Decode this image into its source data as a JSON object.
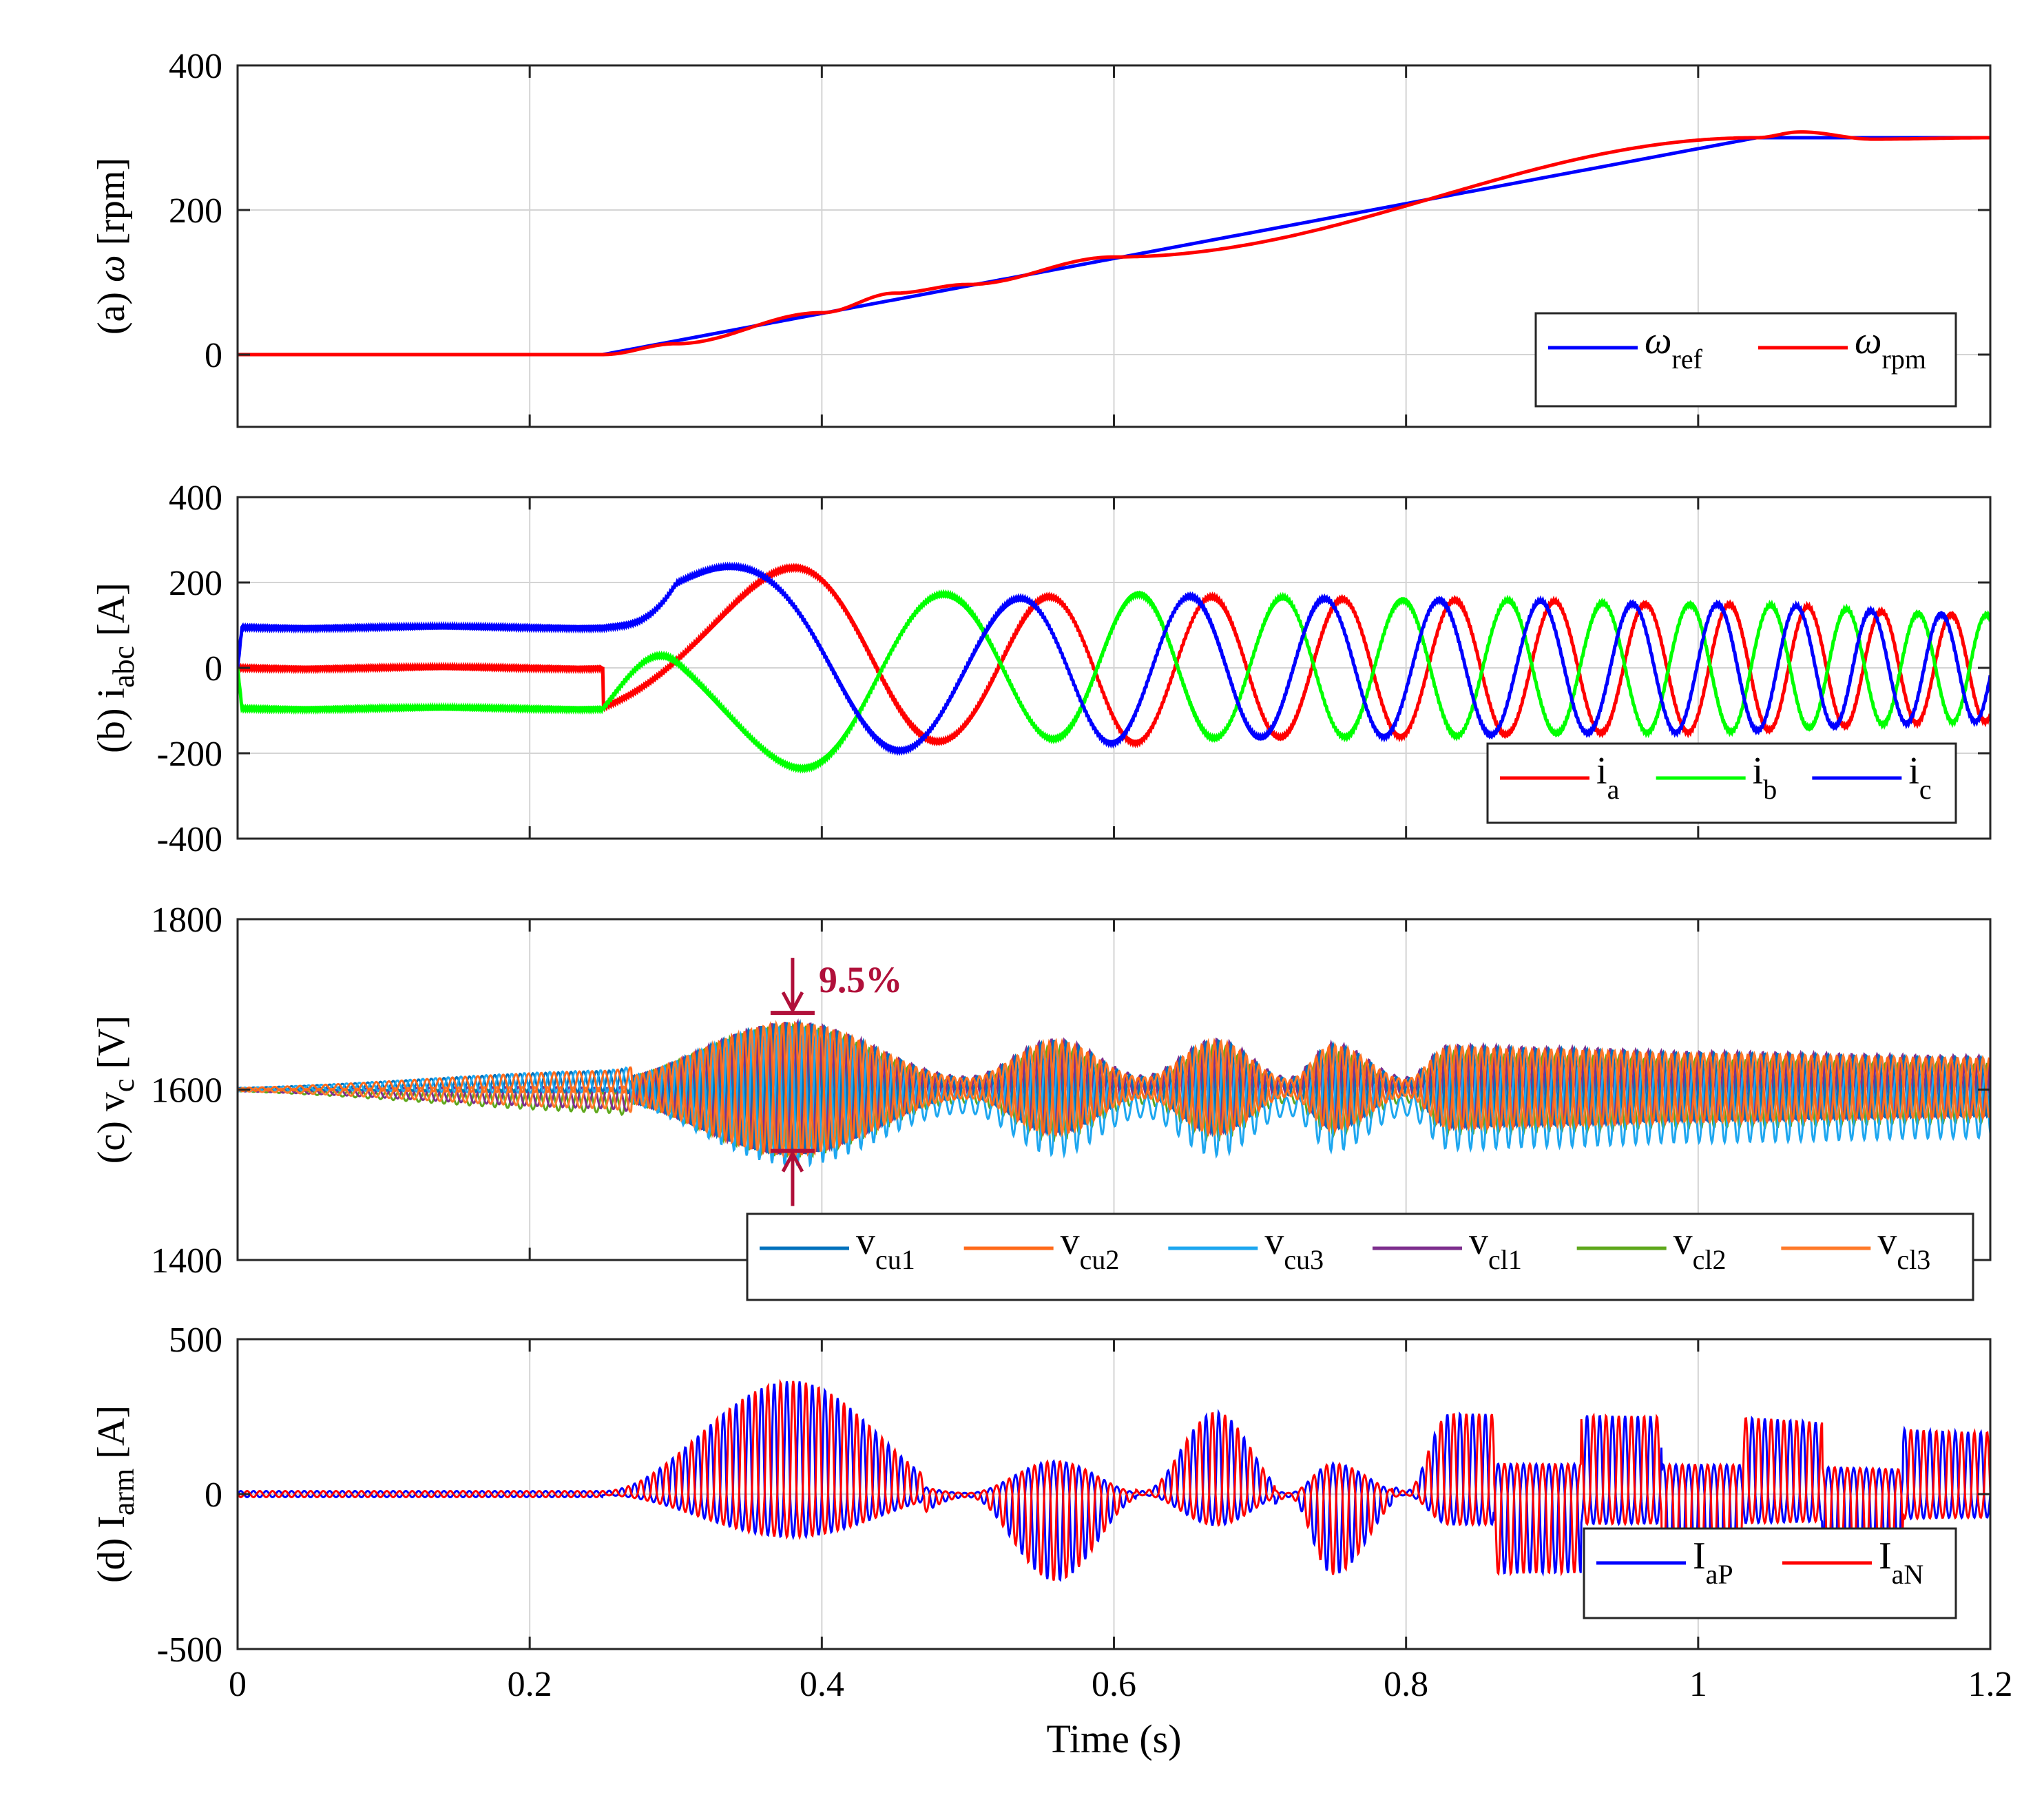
{
  "chart_data": [
    {
      "type": "line",
      "ylabel": "(a) ω [rpm]",
      "ylabel_parts": {
        "prefix": "(a) ",
        "symbol": "ω",
        "sub": "",
        "suffix": " [rpm]"
      },
      "xlim": [
        0,
        1.2
      ],
      "ylim": [
        -100,
        400
      ],
      "yticks": [
        {
          "v": 0,
          "label": "0"
        },
        {
          "v": 200,
          "label": "200"
        },
        {
          "v": 400,
          "label": "400"
        }
      ],
      "grid": true,
      "legend_placement": "bottom-right",
      "series": [
        {
          "name": "ω",
          "sub": "ref",
          "color": "#0000ff",
          "shape": "ramp",
          "x": [
            0,
            0.25,
            1.04,
            1.2
          ],
          "y": [
            0,
            0,
            300,
            300
          ]
        },
        {
          "name": "ω",
          "sub": "rpm",
          "color": "#ff0000",
          "shape": "tracking",
          "x": [
            0,
            0.25,
            0.3,
            0.4,
            0.45,
            0.5,
            0.6,
            1.04,
            1.07,
            1.12,
            1.2
          ],
          "y": [
            0,
            0,
            15,
            58,
            85,
            97,
            135,
            300,
            308,
            298,
            300
          ]
        }
      ]
    },
    {
      "type": "line",
      "ylabel": "(b) i_abc [A]",
      "ylabel_parts": {
        "prefix": "(b) ",
        "symbol": "i",
        "sub": "abc",
        "suffix": " [A]"
      },
      "xlim": [
        0,
        1.2
      ],
      "ylim": [
        -400,
        400
      ],
      "yticks": [
        {
          "v": -400,
          "label": "-400"
        },
        {
          "v": -200,
          "label": "-200"
        },
        {
          "v": 0,
          "label": "0"
        },
        {
          "v": 200,
          "label": "200"
        },
        {
          "v": 400,
          "label": "400"
        }
      ],
      "grid": true,
      "legend_placement": "bottom-right",
      "phase_current_peaks_A": {
        "x": [
          0.38,
          0.52,
          0.6,
          0.68,
          0.8,
          1.0,
          1.2
        ],
        "amplitude": [
          235,
          160,
          175,
          165,
          160,
          150,
          125
        ]
      },
      "dc_levels_before_start_A": {
        "i_a": 0,
        "i_b": -95,
        "i_c": 95,
        "start_time_s": 0.25
      },
      "series": [
        {
          "name": "i",
          "sub": "a",
          "color": "#ff0000",
          "phase_deg": 0
        },
        {
          "name": "i",
          "sub": "b",
          "color": "#00ff00",
          "phase_deg": -120
        },
        {
          "name": "i",
          "sub": "c",
          "color": "#0000ff",
          "phase_deg": 120
        }
      ]
    },
    {
      "type": "line",
      "ylabel": "(c) v_c [V]",
      "ylabel_parts": {
        "prefix": "(c) ",
        "symbol": "v",
        "sub": "c",
        "suffix": " [V]"
      },
      "xlim": [
        0,
        1.2
      ],
      "ylim": [
        1400,
        1800
      ],
      "yticks": [
        {
          "v": 1400,
          "label": "1400"
        },
        {
          "v": 1600,
          "label": "1600"
        },
        {
          "v": 1800,
          "label": "1800"
        }
      ],
      "grid": true,
      "legend_placement": "bottom",
      "ripple_envelope_V": {
        "x": [
          0,
          0.25,
          0.38,
          0.5,
          0.56,
          0.62,
          0.67,
          0.72,
          0.75,
          0.8,
          0.83,
          0.9,
          1.0,
          1.2
        ],
        "amplitude": [
          2,
          12,
          78,
          12,
          55,
          12,
          55,
          10,
          50,
          10,
          48,
          45,
          40,
          35
        ]
      },
      "annotation": {
        "text": "9.5%",
        "color": "#b0103a",
        "x": 0.38,
        "y_top": 1690,
        "y_bottom": 1528
      },
      "series": [
        {
          "name": "v",
          "sub": "cu1",
          "color": "#0072bd"
        },
        {
          "name": "v",
          "sub": "cu2",
          "color": "#ff6a1a"
        },
        {
          "name": "v",
          "sub": "cu3",
          "color": "#1ea7f0"
        },
        {
          "name": "v",
          "sub": "cl1",
          "color": "#7e2f8e"
        },
        {
          "name": "v",
          "sub": "cl2",
          "color": "#5fa81c"
        },
        {
          "name": "v",
          "sub": "cl3",
          "color": "#ff7a2a"
        }
      ]
    },
    {
      "type": "line",
      "ylabel": "(d) I_arm [A]",
      "ylabel_parts": {
        "prefix": "(d) ",
        "symbol": "I",
        "sub": "arm",
        "suffix": " [A]"
      },
      "xlabel": "Time (s)",
      "xlim": [
        0,
        1.2
      ],
      "ylim": [
        -500,
        500
      ],
      "xticks": [
        {
          "v": 0,
          "label": "0"
        },
        {
          "v": 0.2,
          "label": "0.2"
        },
        {
          "v": 0.4,
          "label": "0.4"
        },
        {
          "v": 0.6,
          "label": "0.6"
        },
        {
          "v": 0.8,
          "label": "0.8"
        },
        {
          "v": 1.0,
          "label": "1"
        },
        {
          "v": 1.2,
          "label": "1.2"
        }
      ],
      "yticks": [
        {
          "v": -500,
          "label": "-500"
        },
        {
          "v": 0,
          "label": "0"
        },
        {
          "v": 500,
          "label": "500"
        }
      ],
      "grid": true,
      "legend_placement": "bottom-right",
      "arm_current_envelope_A": {
        "x": [
          0,
          0.25,
          0.38,
          0.5,
          0.56,
          0.62,
          0.67,
          0.72,
          0.75,
          0.8,
          0.83,
          0.9,
          1.0,
          1.2
        ],
        "amplitude": [
          10,
          10,
          365,
          10,
          280,
          10,
          265,
          10,
          260,
          10,
          260,
          255,
          250,
          200
        ]
      },
      "series": [
        {
          "name": "I",
          "sub": "aP",
          "color": "#0000ff"
        },
        {
          "name": "I",
          "sub": "aN",
          "color": "#ff0000"
        }
      ]
    }
  ]
}
